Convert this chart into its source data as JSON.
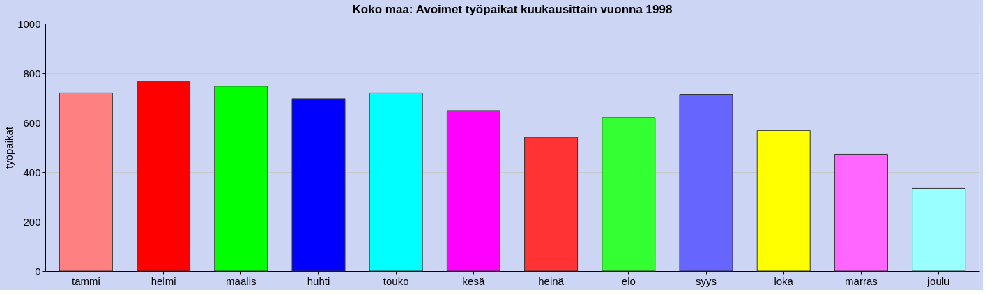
{
  "chart_data": {
    "type": "bar",
    "title": "Koko maa: Avoimet työpaikat kuukausittain vuonna 1998",
    "ylabel": "työpaikat",
    "categories": [
      "tammi",
      "helmi",
      "maalis",
      "huhti",
      "touko",
      "kesä",
      "heinä",
      "elo",
      "syys",
      "loka",
      "marras",
      "joulu"
    ],
    "values": [
      720,
      767,
      747,
      696,
      720,
      648,
      541,
      620,
      714,
      568,
      472,
      334
    ],
    "colors": [
      "#ff8080",
      "#ff0000",
      "#00ff00",
      "#0000ff",
      "#00ffff",
      "#ff00ff",
      "#ff3333",
      "#33ff33",
      "#6666ff",
      "#ffff00",
      "#ff66ff",
      "#99ffff"
    ],
    "ylim": [
      0,
      1000
    ],
    "yticks": [
      0,
      200,
      400,
      600,
      800,
      1000
    ],
    "grid": "y",
    "legend": false
  }
}
